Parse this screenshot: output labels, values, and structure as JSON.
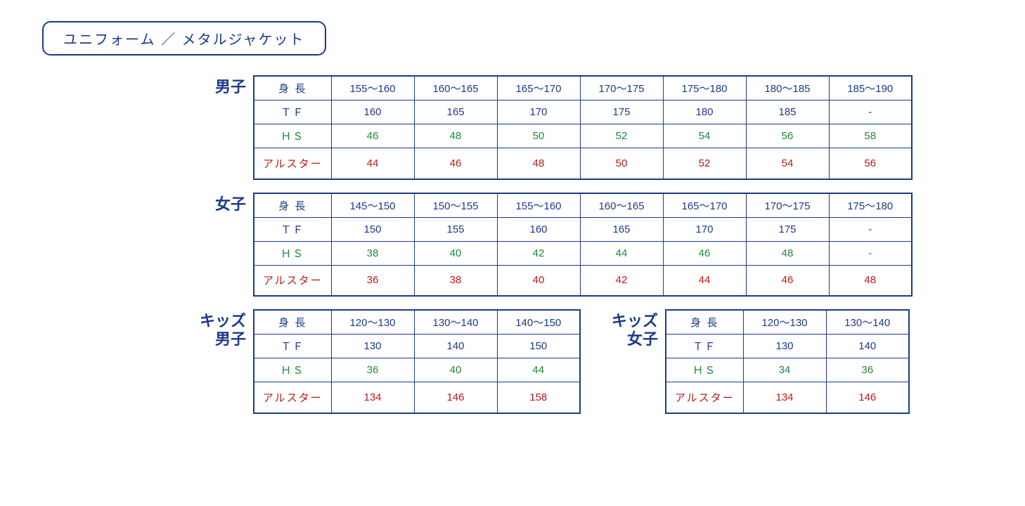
{
  "title": "ユニフォーム ／ メタルジャケット",
  "row_labels": {
    "height": "身 長",
    "tf": "ＴＦ",
    "hs": "ＨＳ",
    "allstar": "アルスター"
  },
  "colors": {
    "navy": "#1a3a8a",
    "green": "#1a8a3a",
    "red": "#c01818",
    "bg": "#ffffff"
  },
  "sections": {
    "mens": {
      "label": "男子",
      "height": [
        "155～160",
        "160～165",
        "165～170",
        "170～175",
        "175～180",
        "180～185",
        "185～190"
      ],
      "tf": [
        "160",
        "165",
        "170",
        "175",
        "180",
        "185",
        "-"
      ],
      "hs": [
        "46",
        "48",
        "50",
        "52",
        "54",
        "56",
        "58"
      ],
      "allstar": [
        "44",
        "46",
        "48",
        "50",
        "52",
        "54",
        "56"
      ]
    },
    "womens": {
      "label": "女子",
      "height": [
        "145～150",
        "150～155",
        "155～160",
        "160～165",
        "165～170",
        "170～175",
        "175～180"
      ],
      "tf": [
        "150",
        "155",
        "160",
        "165",
        "170",
        "175",
        "-"
      ],
      "hs": [
        "38",
        "40",
        "42",
        "44",
        "46",
        "48",
        "-"
      ],
      "allstar": [
        "36",
        "38",
        "40",
        "42",
        "44",
        "46",
        "48"
      ]
    },
    "kids_boys": {
      "label": "キッズ\n男子",
      "height": [
        "120～130",
        "130～140",
        "140～150"
      ],
      "tf": [
        "130",
        "140",
        "150"
      ],
      "hs": [
        "36",
        "40",
        "44"
      ],
      "allstar": [
        "134",
        "146",
        "158"
      ]
    },
    "kids_girls": {
      "label": "キッズ\n女子",
      "height": [
        "120～130",
        "130～140"
      ],
      "tf": [
        "130",
        "140"
      ],
      "hs": [
        "34",
        "36"
      ],
      "allstar": [
        "134",
        "146"
      ]
    }
  }
}
